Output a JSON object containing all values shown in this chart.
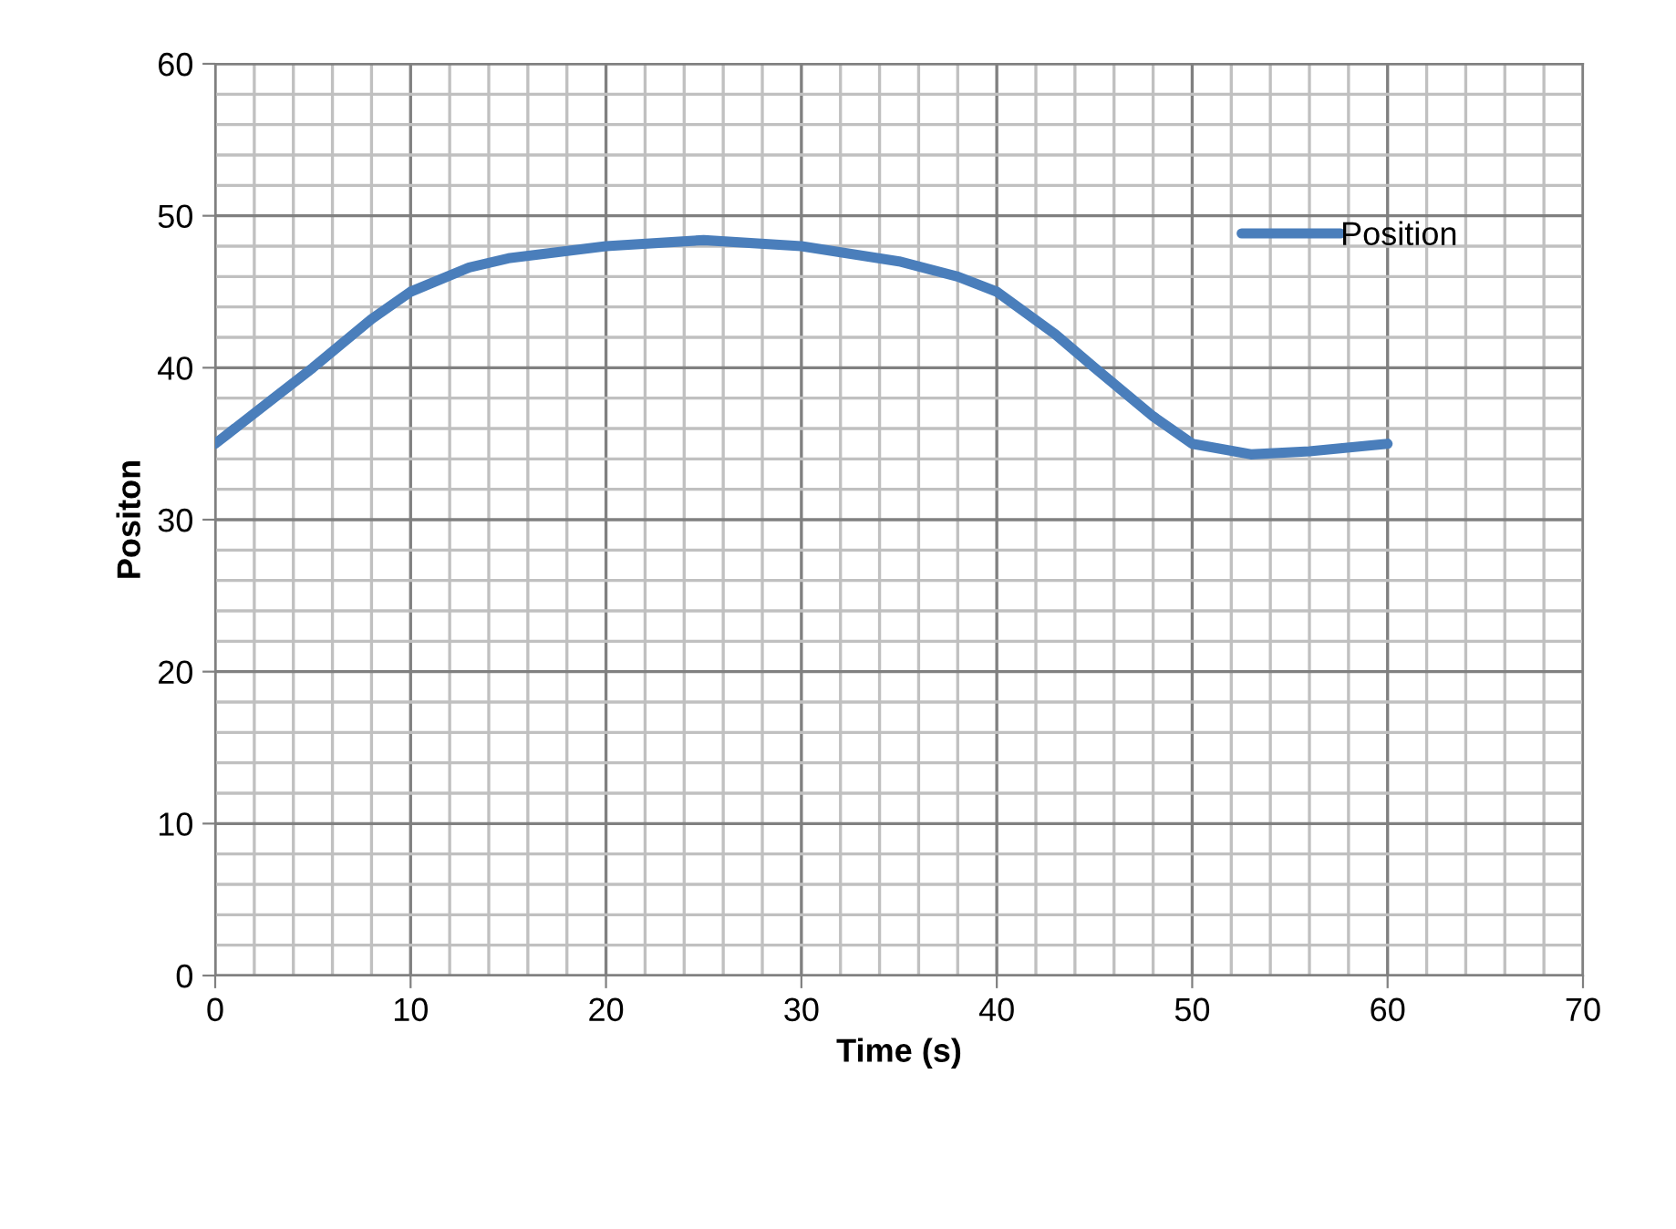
{
  "chart_data": {
    "type": "line",
    "xlabel": "Time (s)",
    "ylabel": "Positon",
    "x": [
      0,
      3,
      5,
      8,
      10,
      13,
      15,
      20,
      25,
      30,
      35,
      38,
      40,
      43,
      45,
      48,
      50,
      53,
      56,
      60
    ],
    "series": [
      {
        "name": "Position",
        "color": "#4a7ebb",
        "values": [
          35,
          38,
          40,
          43.2,
          45,
          46.6,
          47.2,
          48,
          48.4,
          48,
          47,
          46,
          45,
          42.2,
          40,
          36.8,
          35,
          34.3,
          34.5,
          35
        ]
      }
    ],
    "xlim": [
      0,
      70
    ],
    "xticks": [
      0,
      10,
      20,
      30,
      40,
      50,
      60,
      70
    ],
    "ylim": [
      0,
      60
    ],
    "yticks": [
      0,
      10,
      20,
      30,
      40,
      50,
      60
    ],
    "grid": true,
    "legend": "top right",
    "marker": "none",
    "line_style": "solid"
  }
}
